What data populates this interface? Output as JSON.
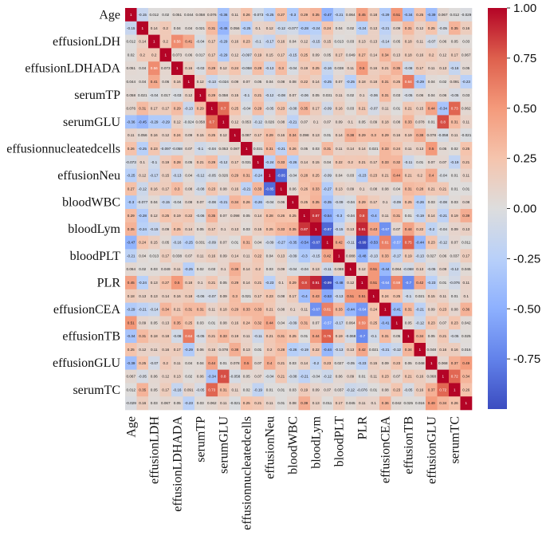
{
  "chart_data": {
    "type": "heatmap",
    "title": "",
    "variables": [
      "Age",
      "",
      "effusionLDH",
      "",
      "effusionLDHADA",
      "",
      "serumTP",
      "",
      "serumGLU",
      "",
      "effusionnucleatedcells",
      "",
      "effusionNeu",
      "",
      "bloodWBC",
      "",
      "bloodLym",
      "",
      "bloodPLT",
      "",
      "PLR",
      "",
      "effusionCEA",
      "",
      "effusionTB",
      "",
      "effusionGLU",
      "",
      "serumTC",
      ""
    ],
    "y_tick_labels": [
      "Age",
      "effusionLDH",
      "effusionLDHADA",
      "serumTP",
      "serumGLU",
      "effusionnucleatedcells",
      "effusionNeu",
      "bloodWBC",
      "bloodLym",
      "bloodPLT",
      "PLR",
      "effusionCEA",
      "effusionTB",
      "effusionGLU",
      "serumTC"
    ],
    "x_tick_labels": [
      "Age",
      "effusionLDH",
      "effusionLDHADA",
      "serumTP",
      "serumGLU",
      "effusionnucleatedcells",
      "effusionNeu",
      "bloodWBC",
      "bloodLym",
      "bloodPLT",
      "PLR",
      "effusionCEA",
      "effusionTB",
      "effusionGLU",
      "serumTC"
    ],
    "values": [
      [
        1,
        -0.15,
        0.012,
        0.02,
        0.051,
        0.044,
        0.058,
        0.076,
        -0.36,
        0.11,
        0.26,
        -0.073,
        -0.25,
        0.27,
        -0.3,
        0.29,
        0.35,
        -0.47,
        -0.21,
        0.064,
        0.45,
        0.18,
        -0.29,
        0.51,
        -0.34,
        0.25,
        -0.39,
        0.067,
        0.012,
        -0.029
      ],
      [
        -0.15,
        1,
        0.14,
        0.2,
        0.04,
        0.04,
        0.021,
        0.31,
        -0.45,
        0.056,
        -0.25,
        0.1,
        0.12,
        -0.12,
        -0.077,
        -0.28,
        -0.24,
        0.24,
        0.04,
        0.02,
        -0.24,
        0.13,
        -0.21,
        0.09,
        0.31,
        0.12,
        0.25,
        -0.05,
        0.35,
        0.16
      ],
      [
        0.012,
        0.14,
        1,
        0.2,
        0.56,
        0.41,
        -0.04,
        0.17,
        -0.29,
        0.16,
        0.23,
        -0.1,
        -0.17,
        0.16,
        0.04,
        0.12,
        -0.15,
        0.15,
        0.013,
        0.03,
        0.13,
        0.13,
        -0.14,
        0.05,
        0.18,
        0.11,
        -0.07,
        0.06,
        0.05,
        0.03
      ],
      [
        0.02,
        0.2,
        0.2,
        1,
        0.073,
        0.06,
        0.017,
        0.17,
        -0.29,
        0.12,
        -0.097,
        0.19,
        0.15,
        0.17,
        -0.15,
        0.25,
        0.09,
        0.05,
        0.17,
        0.049,
        0.27,
        0.14,
        0.34,
        0.13,
        0.18,
        0.16,
        0.2,
        0.12,
        0.17,
        0.067
      ],
      [
        0.051,
        0.04,
        0.56,
        0.073,
        1,
        0.16,
        -0.03,
        0.29,
        0.12,
        0.24,
        -0.058,
        0.28,
        -0.13,
        0.3,
        -0.04,
        0.19,
        0.25,
        -0.16,
        0.038,
        0.11,
        0.5,
        0.16,
        0.21,
        0.35,
        -0.08,
        0.17,
        0.11,
        0.13,
        -0.16,
        0.05
      ],
      [
        0.044,
        0.04,
        0.41,
        0.06,
        0.16,
        1,
        0.12,
        -0.13,
        -0.024,
        0.09,
        0.07,
        0.05,
        0.04,
        0.08,
        0.08,
        0.22,
        0.14,
        -0.25,
        0.07,
        -0.25,
        0.18,
        0.18,
        0.31,
        0.25,
        0.64,
        -0.29,
        0.04,
        0.02,
        0.091,
        -0.23
      ],
      [
        0.058,
        0.021,
        -0.04,
        0.017,
        -0.03,
        0.12,
        1,
        0.29,
        0.058,
        0.15,
        -0.1,
        0.21,
        -0.12,
        -0.08,
        0.07,
        -0.06,
        0.05,
        0.031,
        0.11,
        0.02,
        0.1,
        -0.06,
        0.31,
        0.03,
        -0.05,
        0.06,
        0.04,
        0.06,
        -0.05,
        0.03
      ],
      [
        0.076,
        0.31,
        0.17,
        0.17,
        0.29,
        -0.13,
        0.29,
        1,
        0.7,
        0.25,
        -0.04,
        0.29,
        -0.05,
        0.23,
        -0.08,
        0.35,
        0.17,
        -0.09,
        0.16,
        0.03,
        0.21,
        -0.07,
        0.11,
        0.01,
        0.21,
        0.15,
        0.44,
        -0.34,
        0.73,
        0.062
      ],
      [
        -0.36,
        -0.45,
        -0.29,
        -0.29,
        0.12,
        -0.024,
        0.058,
        0.7,
        1,
        0.12,
        0.053,
        -0.12,
        0.026,
        0.08,
        -0.21,
        0.07,
        0.1,
        0.07,
        0.09,
        0.1,
        0.05,
        0.09,
        0.18,
        0.08,
        0.33,
        0.078,
        0.01,
        0.8,
        0.31,
        0.11
      ],
      [
        0.11,
        0.056,
        0.16,
        0.12,
        0.24,
        0.09,
        0.15,
        0.25,
        0.12,
        1,
        0.087,
        0.17,
        0.29,
        0.16,
        0.34,
        0.098,
        0.13,
        0.01,
        0.14,
        0.38,
        0.29,
        0.3,
        0.29,
        0.16,
        0.19,
        0.38,
        0.078,
        -0.058,
        0.11,
        -0.021
      ],
      [
        0.26,
        -0.25,
        0.23,
        -0.097,
        -0.058,
        0.07,
        -0.1,
        -0.04,
        0.053,
        0.087,
        1,
        0.031,
        0.31,
        -0.21,
        0.26,
        0.05,
        0.03,
        0.31,
        0.11,
        0.14,
        0.14,
        0.021,
        0.33,
        0.24,
        0.11,
        0.13,
        0.5,
        0.05,
        0.02,
        0.25
      ],
      [
        -0.073,
        0.1,
        -0.1,
        0.19,
        0.28,
        0.05,
        0.21,
        0.29,
        -0.12,
        0.17,
        0.031,
        1,
        -0.24,
        0.33,
        -0.26,
        0.14,
        0.15,
        0.04,
        0.22,
        0.2,
        0.21,
        0.17,
        0.33,
        0.32,
        -0.11,
        0.01,
        0.07,
        0.07,
        -0.19,
        0.21
      ],
      [
        -0.25,
        0.12,
        -0.17,
        0.15,
        -0.13,
        0.04,
        -0.12,
        -0.05,
        0.026,
        0.29,
        0.31,
        -0.24,
        1,
        -0.85,
        -0.04,
        0.28,
        0.25,
        -0.09,
        0.04,
        0.03,
        -0.23,
        0.23,
        0.21,
        0.44,
        0.21,
        0.2,
        0.4,
        -0.04,
        0.01,
        0.11
      ],
      [
        0.27,
        -0.12,
        0.16,
        0.17,
        0.3,
        0.08,
        -0.08,
        0.23,
        0.08,
        0.16,
        -0.21,
        0.33,
        -0.85,
        1,
        0.06,
        0.26,
        0.33,
        -0.27,
        0.13,
        0.09,
        0.1,
        0.08,
        0.08,
        0.04,
        0.31,
        0.28,
        0.21,
        0.21,
        0.01,
        0.01
      ],
      [
        -0.3,
        -0.077,
        0.04,
        -0.15,
        -0.04,
        0.08,
        0.07,
        -0.08,
        -0.21,
        0.34,
        0.26,
        -0.26,
        -0.04,
        0.06,
        1,
        0.25,
        0.35,
        -0.35,
        -0.09,
        -0.04,
        0.29,
        0.17,
        0.1,
        -0.09,
        0.25,
        -0.26,
        0.03,
        -0.08,
        0.03,
        0.08
      ],
      [
        0.29,
        -0.28,
        0.12,
        0.25,
        0.19,
        0.22,
        -0.06,
        0.35,
        0.07,
        0.098,
        0.05,
        0.14,
        0.28,
        0.26,
        0.25,
        1,
        0.87,
        -0.54,
        -0.3,
        -0.04,
        0.8,
        -0.4,
        0.11,
        0.31,
        0.01,
        -0.19,
        0.14,
        -0.21,
        0.19,
        0.39
      ],
      [
        0.35,
        -0.24,
        -0.15,
        0.09,
        0.25,
        0.14,
        0.05,
        0.17,
        0.1,
        0.13,
        0.03,
        0.15,
        0.25,
        0.33,
        0.35,
        0.87,
        1,
        -0.87,
        -0.15,
        0.13,
        0.91,
        0.43,
        -0.67,
        0.07,
        0.44,
        0.22,
        -0.2,
        -0.04,
        0.09,
        0.13
      ],
      [
        -0.47,
        0.24,
        0.15,
        0.05,
        -0.16,
        -0.25,
        0.031,
        -0.09,
        0.07,
        0.01,
        0.31,
        0.04,
        -0.09,
        -0.27,
        -0.35,
        -0.54,
        -0.87,
        1,
        0.42,
        -0.11,
        -0.99,
        -0.53,
        0.61,
        -0.57,
        0.75,
        -0.44,
        0.23,
        -0.12,
        0.07,
        0.011
      ],
      [
        -0.21,
        0.04,
        0.013,
        0.17,
        0.038,
        0.07,
        0.11,
        0.16,
        0.09,
        0.14,
        0.11,
        0.22,
        0.04,
        0.13,
        -0.09,
        -0.3,
        -0.15,
        0.42,
        1,
        0.088,
        -0.48,
        -0.13,
        0.33,
        -0.17,
        0.19,
        -0.13,
        0.027,
        0.06,
        0.037,
        0.17
      ],
      [
        0.064,
        0.02,
        0.03,
        0.049,
        0.11,
        -0.25,
        0.02,
        0.03,
        0.1,
        0.38,
        0.14,
        0.2,
        0.03,
        0.09,
        -0.04,
        -0.04,
        0.13,
        -0.11,
        0.088,
        1,
        0.12,
        0.51,
        -0.44,
        0.064,
        -0.068,
        0.13,
        -0.05,
        0.09,
        -0.12,
        0.045
      ],
      [
        0.45,
        -0.24,
        0.13,
        0.27,
        0.5,
        0.18,
        0.1,
        0.21,
        0.05,
        0.29,
        0.14,
        0.21,
        -0.23,
        0.1,
        0.29,
        0.8,
        0.91,
        -0.99,
        -0.48,
        0.12,
        1,
        0.51,
        -0.64,
        0.59,
        -0.7,
        0.42,
        -0.23,
        0.01,
        -0.076,
        0.11
      ],
      [
        0.18,
        0.13,
        0.13,
        0.14,
        0.16,
        0.18,
        -0.06,
        -0.07,
        0.09,
        0.3,
        0.021,
        0.17,
        0.23,
        0.08,
        0.17,
        -0.4,
        0.43,
        -0.53,
        -0.13,
        0.51,
        0.51,
        1,
        0.24,
        0.25,
        -0.1,
        0.021,
        0.15,
        0.11,
        0.01,
        0.1
      ],
      [
        -0.29,
        -0.21,
        -0.14,
        0.34,
        0.21,
        0.31,
        0.31,
        0.11,
        0.18,
        0.29,
        0.33,
        0.33,
        0.21,
        0.08,
        0.1,
        0.11,
        -0.67,
        0.61,
        0.33,
        -0.44,
        -0.64,
        0.24,
        1,
        -0.41,
        0.31,
        -0.21,
        0.09,
        0.23,
        0.08,
        0.36
      ],
      [
        0.51,
        0.09,
        0.05,
        0.13,
        0.35,
        0.25,
        0.03,
        0.01,
        0.08,
        0.16,
        0.24,
        0.32,
        0.44,
        0.04,
        -0.09,
        0.31,
        0.07,
        -0.57,
        -0.17,
        0.064,
        0.59,
        0.25,
        -0.41,
        1,
        0.05,
        -0.12,
        0.23,
        0.07,
        0.23,
        0.042
      ],
      [
        -0.34,
        0.31,
        0.18,
        0.18,
        -0.08,
        0.64,
        -0.05,
        0.21,
        0.33,
        0.19,
        0.11,
        -0.11,
        0.21,
        0.31,
        0.25,
        0.01,
        0.44,
        0.75,
        0.19,
        -0.068,
        -0.7,
        -0.1,
        0.31,
        0.05,
        1,
        0.34,
        0.05,
        0.21,
        -0.05,
        0.025
      ],
      [
        0.25,
        0.12,
        0.11,
        0.16,
        0.17,
        -0.29,
        0.06,
        0.15,
        0.078,
        0.38,
        0.13,
        0.01,
        0.2,
        0.28,
        -0.26,
        -0.19,
        0.22,
        -0.44,
        -0.13,
        0.13,
        0.42,
        0.021,
        -0.21,
        -0.12,
        0.34,
        1,
        0.048,
        0.16,
        0.16,
        0.016
      ],
      [
        -0.39,
        0.25,
        -0.07,
        0.2,
        0.11,
        0.04,
        0.04,
        0.44,
        0.01,
        0.078,
        0.5,
        0.07,
        0.4,
        0.21,
        0.03,
        0.14,
        -0.2,
        0.23,
        0.027,
        -0.05,
        -0.23,
        0.15,
        0.09,
        0.23,
        0.05,
        0.048,
        1,
        0.068,
        0.37,
        0.49
      ],
      [
        0.067,
        -0.05,
        0.06,
        0.12,
        0.13,
        0.02,
        0.06,
        -0.34,
        0.8,
        -0.058,
        0.05,
        0.07,
        -0.04,
        0.21,
        -0.08,
        -0.21,
        -0.04,
        -0.12,
        0.06,
        0.09,
        0.01,
        0.11,
        0.23,
        0.07,
        0.21,
        0.16,
        0.068,
        1,
        0.72,
        0.34
      ],
      [
        0.012,
        0.35,
        0.05,
        0.17,
        -0.16,
        0.091,
        -0.05,
        0.73,
        0.31,
        0.11,
        0.02,
        -0.19,
        0.01,
        0.01,
        0.03,
        0.19,
        0.09,
        0.07,
        0.037,
        -0.12,
        -0.076,
        0.01,
        0.08,
        0.23,
        -0.05,
        0.16,
        0.37,
        0.72,
        1,
        0.26
      ],
      [
        -0.029,
        0.16,
        0.03,
        0.067,
        0.05,
        -0.23,
        0.03,
        0.062,
        0.11,
        -0.021,
        0.25,
        0.21,
        0.11,
        0.01,
        0.08,
        0.39,
        0.13,
        0.011,
        0.17,
        0.045,
        0.11,
        0.1,
        0.36,
        0.042,
        0.025,
        0.016,
        0.49,
        0.34,
        0.26,
        1
      ]
    ],
    "colorbar": {
      "min": -1.0,
      "max": 1.0,
      "ticks": [
        "1.00",
        "0.75",
        "0.50",
        "0.25",
        "0.00",
        "-0.25",
        "-0.50",
        "-0.75"
      ],
      "tick_values": [
        1.0,
        0.75,
        0.5,
        0.25,
        0.0,
        -0.25,
        -0.5,
        -0.75
      ],
      "colormap": "coolwarm"
    },
    "colors": {
      "low": "#3b4cc0",
      "mid": "#dddddd",
      "high": "#b40426"
    }
  }
}
